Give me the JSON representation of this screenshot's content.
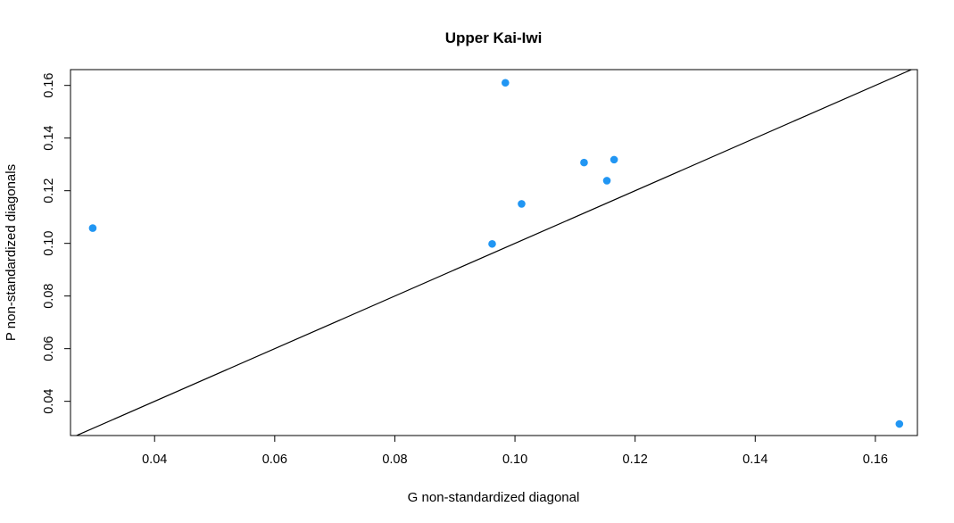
{
  "chart_data": {
    "type": "scatter",
    "title": "Upper Kai-Iwi",
    "xlabel": "G non-standardized diagonal",
    "ylabel": "P non-standardized diagonals",
    "xlim": [
      0.026,
      0.167
    ],
    "ylim": [
      0.027,
      0.166
    ],
    "x_ticks": [
      0.04,
      0.06,
      0.08,
      0.1,
      0.12,
      0.14,
      0.16
    ],
    "x_tick_labels": [
      "0.04",
      "0.06",
      "0.08",
      "0.10",
      "0.12",
      "0.14",
      "0.16"
    ],
    "y_ticks": [
      0.04,
      0.06,
      0.08,
      0.1,
      0.12,
      0.14,
      0.16
    ],
    "y_tick_labels": [
      "0.04",
      "0.06",
      "0.08",
      "0.10",
      "0.12",
      "0.14",
      "0.16"
    ],
    "grid": false,
    "reference_line": "y = x",
    "point_color": "#2196F3",
    "line_color": "#000000",
    "series": [
      {
        "points": [
          {
            "x": 0.0297,
            "y": 0.1058
          },
          {
            "x": 0.0962,
            "y": 0.0998
          },
          {
            "x": 0.0984,
            "y": 0.161
          },
          {
            "x": 0.1011,
            "y": 0.115
          },
          {
            "x": 0.1115,
            "y": 0.1307
          },
          {
            "x": 0.1153,
            "y": 0.1238
          },
          {
            "x": 0.1165,
            "y": 0.1318
          },
          {
            "x": 0.164,
            "y": 0.0314
          }
        ]
      }
    ]
  }
}
